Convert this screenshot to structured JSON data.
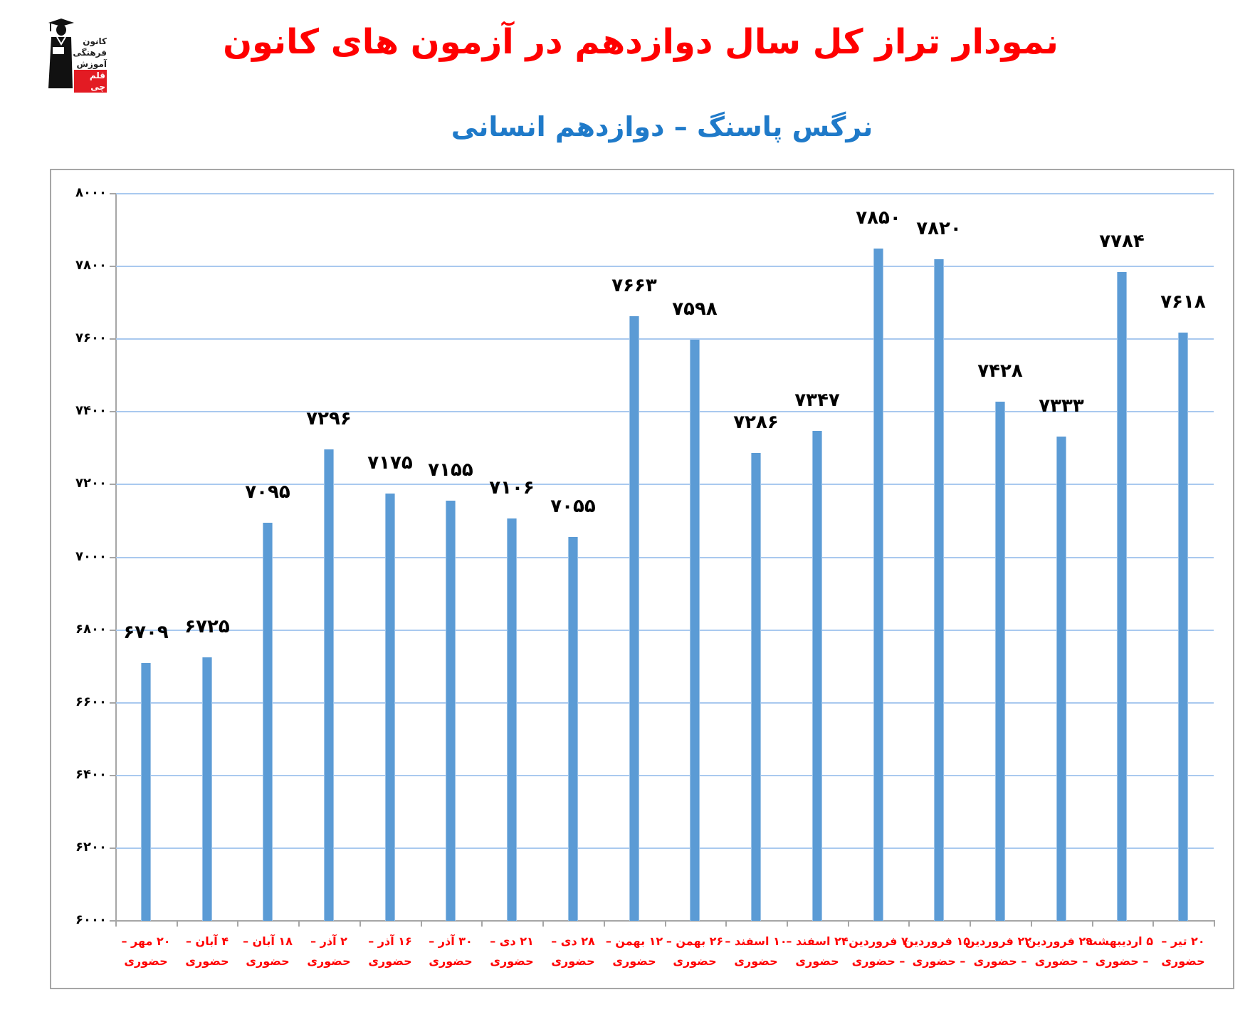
{
  "logo": {
    "lines": [
      "کانون",
      "فرهنگی",
      "آموزش"
    ],
    "brand": "قلم چی",
    "icon": "graduate-figure-icon"
  },
  "title": "نمودار تراز کل سال دوازدهم در آزمون های کانون",
  "subtitle": "نرگس پاسنگ – دوازدهم انسانی",
  "colors": {
    "title": "#ff0000",
    "subtitle": "#1f7ac9",
    "bar": "#5b9bd5",
    "gridline": "#a9c9ef",
    "xlabel": "#ff0000"
  },
  "chart_data": {
    "type": "bar",
    "title": "نمودار تراز کل سال دوازدهم در آزمون های کانون",
    "subtitle": "نرگس پاسنگ – دوازدهم انسانی",
    "xlabel": "",
    "ylabel": "",
    "ylim": [
      6000,
      8000
    ],
    "yticks": [
      6000,
      6200,
      6400,
      6600,
      6800,
      7000,
      7200,
      7400,
      7600,
      7800,
      8000
    ],
    "ytick_labels": [
      "۶۰۰۰",
      "۶۲۰۰",
      "۶۴۰۰",
      "۶۶۰۰",
      "۶۸۰۰",
      "۷۰۰۰",
      "۷۲۰۰",
      "۷۴۰۰",
      "۷۶۰۰",
      "۷۸۰۰",
      "۸۰۰۰"
    ],
    "grid": true,
    "legend": "none",
    "categories": [
      "۲۰ مهر – حضوری",
      "۴ آبان – حضوری",
      "۱۸ آبان – حضوری",
      "۲ آذر – حضوری",
      "۱۶ آذر – حضوری",
      "۳۰ آذر – حضوری",
      "۲۱ دی – حضوری",
      "۲۸ دی – حضوری",
      "۱۲ بهمن – حضوری",
      "۲۶ بهمن – حضوری",
      "۱۰ اسفند – حضوری",
      "۲۴ اسفند – حضوری",
      "۷ فروردین – حضوری",
      "۱۵ فروردین – حضوری",
      "۲۲ فروردین – حضوری",
      "۲۹ فروردین – حضوری",
      "۵ اردیبهشت – حضوری",
      "۲۰ تیر – حضوری"
    ],
    "category_lines": [
      [
        "۲۰ مهر –",
        "حضوری"
      ],
      [
        "۴ آبان –",
        "حضوری"
      ],
      [
        "۱۸ آبان –",
        "حضوری"
      ],
      [
        "۲ آذر –",
        "حضوری"
      ],
      [
        "۱۶ آذر –",
        "حضوری"
      ],
      [
        "۳۰ آذر –",
        "حضوری"
      ],
      [
        "۲۱ دی –",
        "حضوری"
      ],
      [
        "۲۸ دی –",
        "حضوری"
      ],
      [
        "۱۲ بهمن –",
        "حضوری"
      ],
      [
        "۲۶ بهمن –",
        "حضوری"
      ],
      [
        "۱۰ اسفند –",
        "حضوری"
      ],
      [
        "۲۴ اسفند –",
        "حضوری"
      ],
      [
        "۷ فروردین",
        "– حضوری"
      ],
      [
        "۱۵ فروردین",
        "– حضوری"
      ],
      [
        "۲۲ فروردین",
        "– حضوری"
      ],
      [
        "۲۹ فروردین",
        "– حضوری"
      ],
      [
        "۵ اردیبهشت",
        "– حضوری"
      ],
      [
        "۲۰ تیر –",
        "حضوری"
      ]
    ],
    "values": [
      6709,
      6725,
      7095,
      7296,
      7175,
      7155,
      7106,
      7055,
      7663,
      7598,
      7286,
      7347,
      7850,
      7820,
      7428,
      7333,
      7784,
      7618
    ],
    "value_labels": [
      "۶۷۰۹",
      "۶۷۲۵",
      "۷۰۹۵",
      "۷۲۹۶",
      "۷۱۷۵",
      "۷۱۵۵",
      "۷۱۰۶",
      "۷۰۵۵",
      "۷۶۶۳",
      "۷۵۹۸",
      "۷۲۸۶",
      "۷۳۴۷",
      "۷۸۵۰",
      "۷۸۲۰",
      "۷۴۲۸",
      "۷۳۳۳",
      "۷۷۸۴",
      "۷۶۱۸"
    ]
  }
}
